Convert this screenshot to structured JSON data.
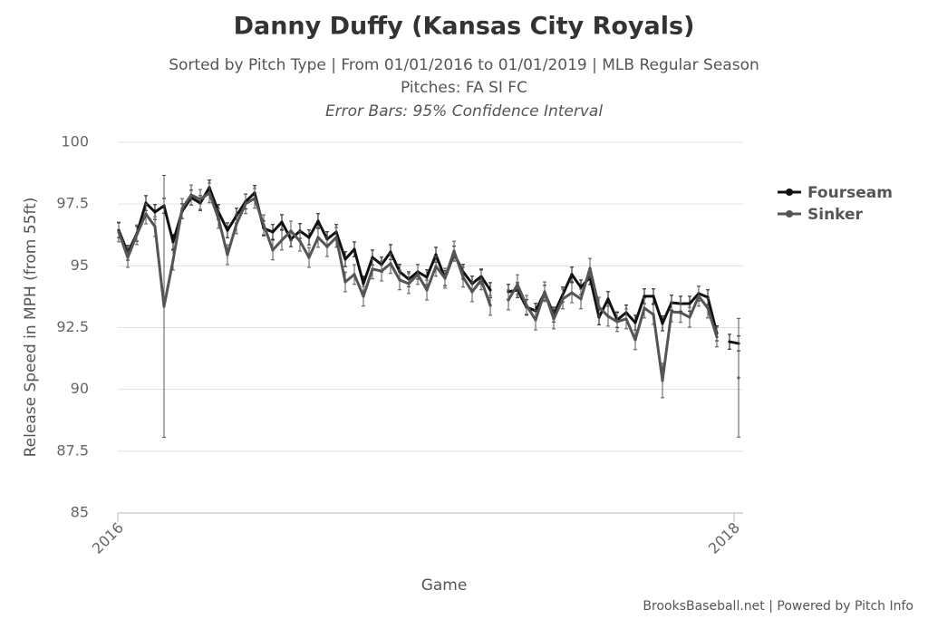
{
  "chart_data": {
    "type": "line",
    "title": "Danny Duffy (Kansas City Royals)",
    "subtitle": [
      "Sorted by Pitch Type | From 01/01/2016 to 01/01/2019 | MLB Regular Season",
      "Pitches: FA SI FC"
    ],
    "note": "Error Bars: 95% Confidence Interval",
    "x_label": "Game",
    "y_label": "Release Speed in MPH (from 55ft)",
    "credit": "BrooksBaseball.net | Powered by Pitch Info",
    "x": [
      1,
      2,
      3,
      4,
      5,
      6,
      7,
      8,
      9,
      10,
      11,
      12,
      13,
      14,
      15,
      16,
      17,
      18,
      19,
      20,
      21,
      22,
      23,
      24,
      25,
      26,
      27,
      28,
      29,
      30,
      31,
      32,
      33,
      34,
      35,
      36,
      37,
      38,
      39,
      40,
      41,
      42,
      43,
      44,
      45,
      46,
      47,
      48,
      49,
      50,
      51,
      52,
      53,
      54,
      55,
      56,
      57,
      58,
      59,
      60,
      61,
      62,
      63,
      64,
      65,
      66,
      67,
      67.7,
      68.4,
      69.4
    ],
    "xlim": [
      0.9,
      69.9
    ],
    "xticks": [
      {
        "value": 0.9,
        "label": "2016"
      },
      {
        "value": 68.9,
        "label": "2018"
      }
    ],
    "ylim": [
      85,
      100
    ],
    "yticks": [
      85,
      87.5,
      90,
      92.5,
      95,
      97.5,
      100
    ],
    "grid": true,
    "legend": "right",
    "series": [
      {
        "name": "Fourseam",
        "color": "#111111",
        "values": [
          96.44,
          95.53,
          96.3,
          97.54,
          97.18,
          97.43,
          95.97,
          97.21,
          97.76,
          97.54,
          98.17,
          97.18,
          96.44,
          97.03,
          97.6,
          97.95,
          96.52,
          96.37,
          96.77,
          96.08,
          96.41,
          96.15,
          96.81,
          96.08,
          96.37,
          95.27,
          95.67,
          94.28,
          95.34,
          95.05,
          95.56,
          94.76,
          94.46,
          94.76,
          94.54,
          95.45,
          94.5,
          95.49,
          94.76,
          94.28,
          94.57,
          94.02,
          null,
          93.95,
          94.02,
          93.33,
          93.18,
          93.91,
          93.03,
          93.84,
          94.65,
          94.13,
          94.54,
          92.92,
          93.66,
          92.81,
          93.11,
          92.7,
          93.77,
          93.77,
          92.67,
          93.51,
          93.47,
          93.47,
          93.88,
          93.73,
          92.27,
          null,
          91.93,
          91.86
        ],
        "errors": [
          0.3,
          0.3,
          0.3,
          0.3,
          0.3,
          0.3,
          0.3,
          0.3,
          0.3,
          0.3,
          0.3,
          0.3,
          0.3,
          0.3,
          0.3,
          0.3,
          0.3,
          0.3,
          0.3,
          0.3,
          0.3,
          0.3,
          0.3,
          0.3,
          0.3,
          0.3,
          0.3,
          0.3,
          0.3,
          0.3,
          0.3,
          0.3,
          0.3,
          0.3,
          0.3,
          0.3,
          0.3,
          0.3,
          0.3,
          0.3,
          0.3,
          0.3,
          null,
          0.3,
          0.3,
          0.3,
          0.3,
          0.3,
          0.3,
          0.3,
          0.3,
          0.3,
          0.3,
          0.3,
          0.3,
          0.3,
          0.3,
          0.3,
          0.3,
          0.3,
          0.3,
          0.3,
          0.3,
          0.3,
          0.3,
          0.3,
          0.3,
          null,
          0.3,
          0.3
        ]
      },
      {
        "name": "Sinker",
        "color": "#555555",
        "values": [
          96.37,
          95.34,
          96.26,
          97.1,
          96.59,
          93.36,
          95.23,
          97.32,
          97.87,
          97.69,
          97.95,
          96.92,
          95.45,
          96.7,
          97.51,
          97.73,
          96.66,
          95.64,
          96.04,
          96.41,
          96.0,
          95.34,
          96.15,
          95.78,
          96.15,
          94.35,
          94.65,
          93.77,
          94.87,
          94.79,
          95.09,
          94.43,
          94.28,
          94.65,
          94.02,
          94.98,
          94.5,
          95.6,
          94.54,
          93.95,
          94.43,
          93.4,
          null,
          93.62,
          94.24,
          93.4,
          92.81,
          93.95,
          92.85,
          93.66,
          93.91,
          93.66,
          94.9,
          93.33,
          92.96,
          92.74,
          92.85,
          92.01,
          93.29,
          93.03,
          90.36,
          93.14,
          93.11,
          92.92,
          93.77,
          93.29,
          92.12,
          null,
          null,
          90.47
        ],
        "errors": [
          0.4,
          0.4,
          0.4,
          0.4,
          0.4,
          5.3,
          0.4,
          0.4,
          0.4,
          0.4,
          0.4,
          0.4,
          0.4,
          0.4,
          0.4,
          0.4,
          0.4,
          0.4,
          0.4,
          0.4,
          0.4,
          0.4,
          0.4,
          0.4,
          0.4,
          0.4,
          0.4,
          0.4,
          0.4,
          0.4,
          0.4,
          0.4,
          0.4,
          0.4,
          0.4,
          0.4,
          0.4,
          0.4,
          0.4,
          0.4,
          0.4,
          0.4,
          null,
          0.4,
          0.4,
          0.4,
          0.4,
          0.4,
          0.4,
          0.4,
          0.4,
          0.4,
          0.4,
          0.4,
          0.4,
          0.4,
          0.4,
          0.4,
          0.4,
          0.4,
          0.7,
          0.4,
          0.4,
          0.4,
          0.4,
          0.4,
          0.4,
          null,
          null,
          2.4
        ]
      }
    ]
  }
}
